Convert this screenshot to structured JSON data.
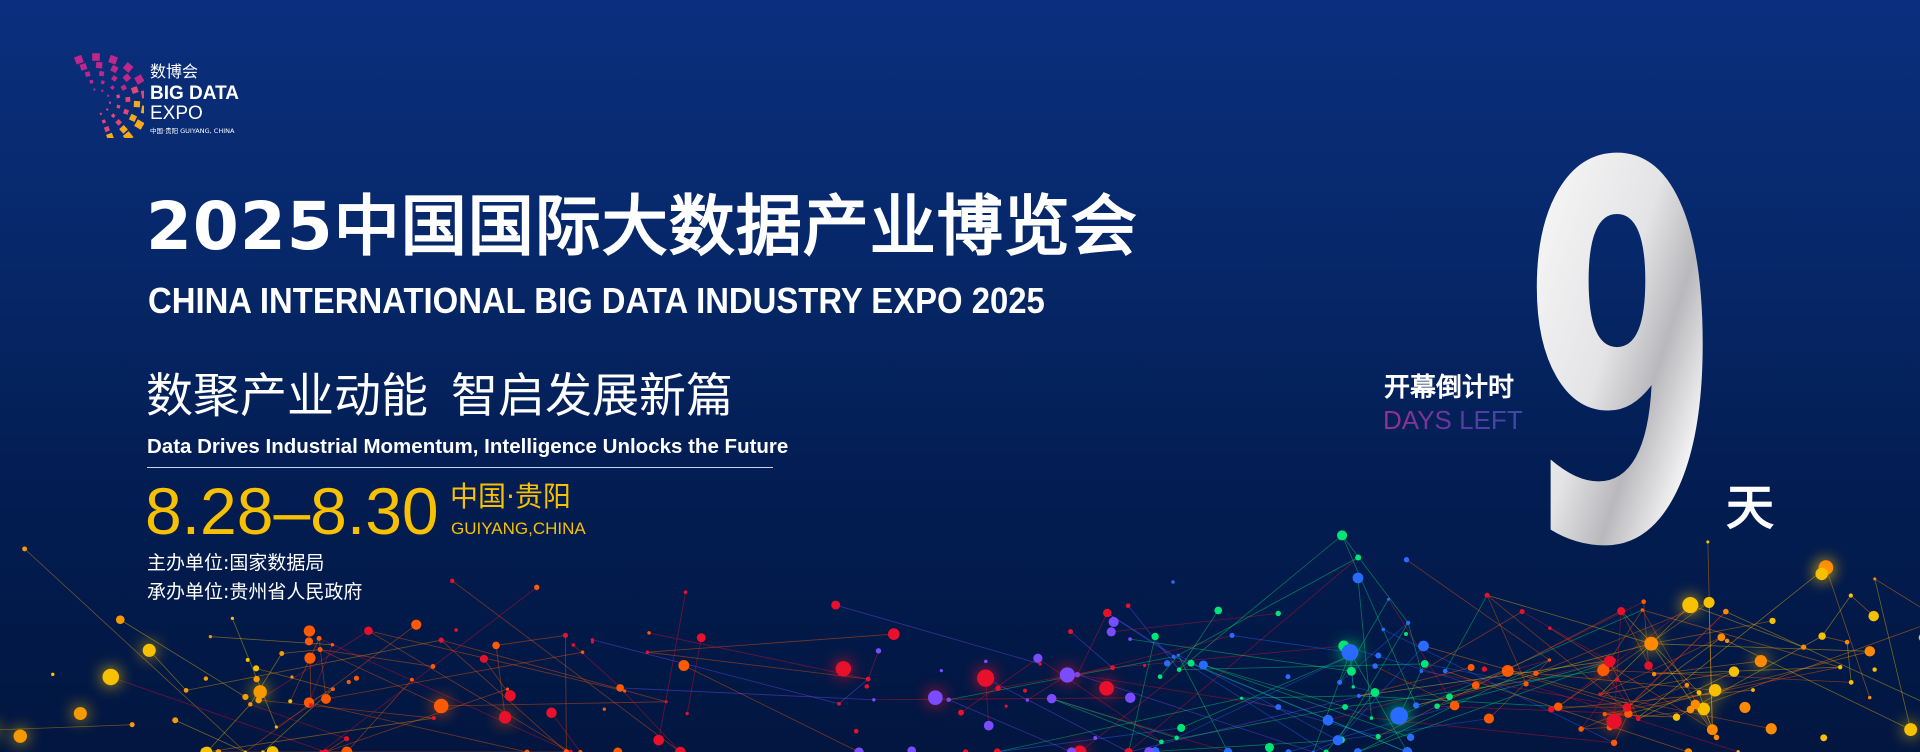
{
  "logo": {
    "name_cn": "数博会",
    "name_en_line1": "BIG DATA",
    "name_en_line2": "EXPO",
    "location": "中国·贵阳   GUIYANG, CHINA"
  },
  "headline": {
    "title_cn": "2025中国国际大数据产业博览会",
    "title_en": "CHINA INTERNATIONAL BIG DATA INDUSTRY EXPO 2025",
    "slogan_cn": "数聚产业动能 智启发展新篇",
    "slogan_en": "Data Drives Industrial Momentum, Intelligence Unlocks the Future"
  },
  "event": {
    "dates": "8.28–8.30",
    "location_cn": "中国·贵阳",
    "location_en": "GUIYANG,CHINA",
    "organizer": "主办单位:国家数据局",
    "host": "承办单位:贵州省人民政府"
  },
  "countdown": {
    "label_cn": "开幕倒计时",
    "label_en": "DAYS LEFT",
    "days": "9",
    "unit": "天"
  },
  "colors": {
    "background_top": "#0b2f7e",
    "background_bottom": "#021640",
    "accent_yellow": "#f7c000",
    "days_left_purple": "#9a2f8f"
  }
}
